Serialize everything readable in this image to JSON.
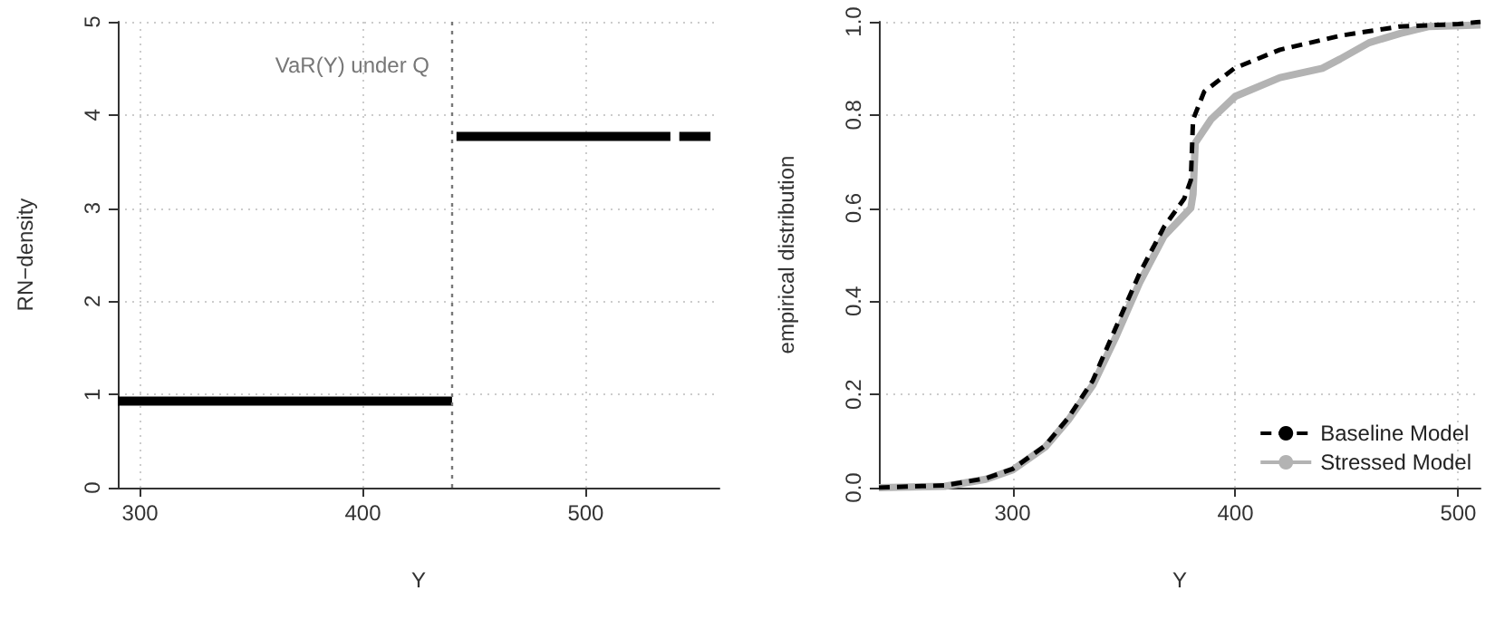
{
  "chart_data": [
    {
      "type": "line",
      "xlabel": "Y",
      "ylabel": "RN−density",
      "xlim": [
        290,
        560
      ],
      "ylim": [
        0,
        5
      ],
      "xticks": [
        300,
        400,
        500
      ],
      "yticks": [
        0,
        1,
        2,
        3,
        4,
        5
      ],
      "grid": true,
      "legend": false,
      "marker": "none",
      "line_style": "solid",
      "series": [
        {
          "color": "#000000",
          "x": [
            290,
            440,
            441,
            442,
            538,
            540,
            542,
            556
          ],
          "values": [
            0.93,
            0.93,
            null,
            3.77,
            3.77,
            null,
            3.77,
            3.77
          ]
        }
      ],
      "ref_lines": [
        {
          "axis": "x",
          "value": 440,
          "label": "VaR(Y) under Q",
          "color": "#777777",
          "line_style": "dotted"
        }
      ]
    },
    {
      "type": "line",
      "xlabel": "Y",
      "ylabel": "empirical distribution",
      "xlim": [
        240,
        510
      ],
      "ylim": [
        0,
        1
      ],
      "xticks": [
        300,
        400,
        500
      ],
      "yticks": [
        {
          "value": 0,
          "label": "0.0"
        },
        {
          "value": 0.2,
          "label": "0.2"
        },
        {
          "value": 0.4,
          "label": "0.4"
        },
        {
          "value": 0.6,
          "label": "0.6"
        },
        {
          "value": 0.8,
          "label": "0.8"
        },
        {
          "value": 1,
          "label": "1.0"
        }
      ],
      "grid": true,
      "legend": "bottom right",
      "marker": "none",
      "series": [
        {
          "name": "Baseline Model",
          "color": "#000000",
          "line_style": "dashed",
          "x": [
            240,
            269.5,
            288,
            300,
            314.6,
            325,
            336,
            346,
            357,
            368,
            377,
            380,
            381,
            386,
            399.5,
            420,
            447,
            474,
            500,
            510
          ],
          "values": [
            0.0,
            0.005,
            0.02,
            0.04,
            0.09,
            0.15,
            0.23,
            0.34,
            0.46,
            0.56,
            0.62,
            0.66,
            0.79,
            0.85,
            0.9,
            0.94,
            0.97,
            0.99,
            0.995,
            1.0
          ]
        },
        {
          "name": "Stressed Model",
          "color": "#b3b3b3",
          "line_style": "solid",
          "x": [
            240,
            269.5,
            288,
            300,
            314.6,
            325,
            336,
            346,
            357,
            368,
            380,
            381,
            382,
            389,
            400,
            420,
            439,
            447,
            460,
            474,
            487,
            510
          ],
          "values": [
            0.0,
            0.003,
            0.018,
            0.038,
            0.087,
            0.145,
            0.22,
            0.32,
            0.44,
            0.54,
            0.6,
            0.63,
            0.74,
            0.79,
            0.84,
            0.88,
            0.9,
            0.92,
            0.955,
            0.975,
            0.99,
            0.993
          ]
        }
      ]
    }
  ]
}
